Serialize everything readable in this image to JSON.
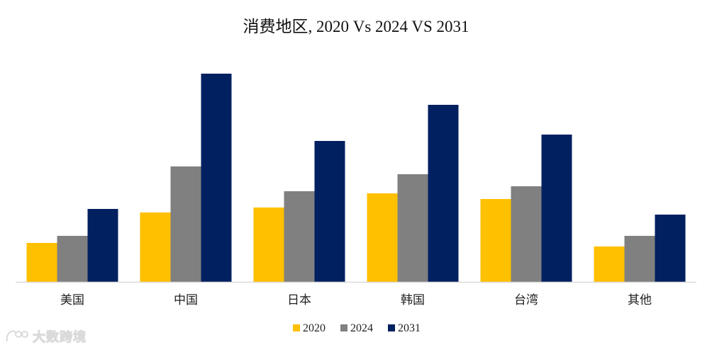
{
  "chart_data": {
    "type": "bar",
    "title": "消费地区, 2020 Vs 2024 VS 2031",
    "xlabel": "",
    "ylabel": "",
    "categories": [
      "美国",
      "中国",
      "日本",
      "韩国",
      "台湾",
      "其他"
    ],
    "series": [
      {
        "name": "2020",
        "color": "#FFC000",
        "values": [
          5.5,
          9.8,
          10.5,
          12.5,
          11.7,
          5.0
        ]
      },
      {
        "name": "2024",
        "color": "#808080",
        "values": [
          6.5,
          16.3,
          12.8,
          15.2,
          13.5,
          6.5
        ]
      },
      {
        "name": "2031",
        "color": "#002060",
        "values": [
          10.3,
          29.4,
          19.9,
          25.0,
          20.8,
          9.5
        ]
      }
    ],
    "ylim": [
      0,
      32
    ],
    "grid": false,
    "legend": "bottom-center"
  },
  "watermark": {
    "text": "大数跨境",
    "icon": "logo-icon"
  }
}
